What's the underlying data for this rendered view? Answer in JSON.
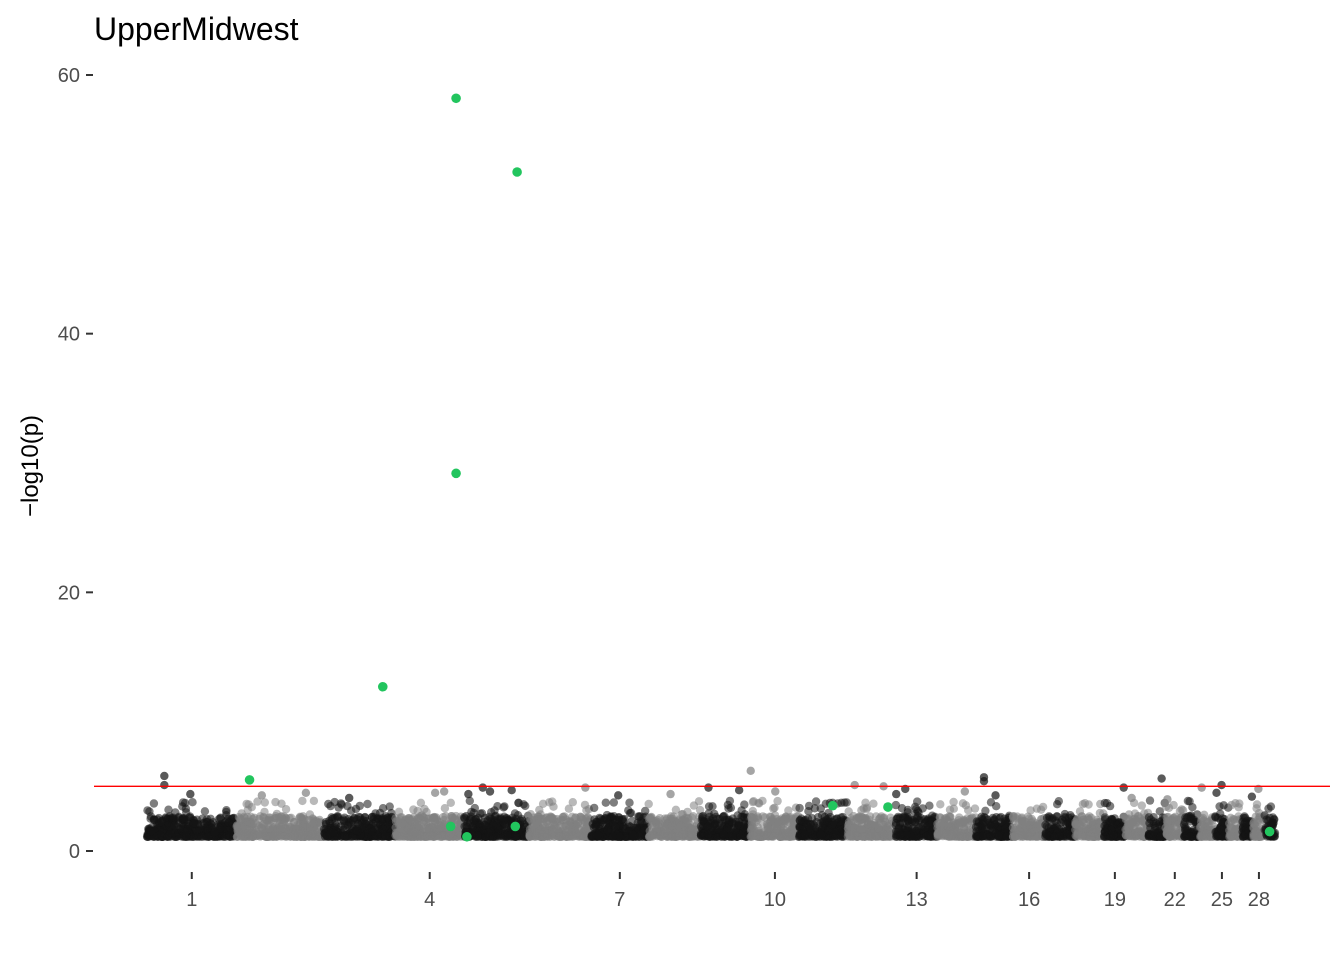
{
  "chart_data": {
    "type": "scatter",
    "title": "UpperMidwest",
    "xlabel": "",
    "ylabel": "−log10(p)",
    "ylim": [
      0,
      60
    ],
    "y_ticks": [
      0,
      20,
      40,
      60
    ],
    "chromosomes": [
      {
        "chr": 1,
        "start": 0,
        "end": 248
      },
      {
        "chr": 2,
        "start": 248,
        "end": 490
      },
      {
        "chr": 3,
        "start": 490,
        "end": 688
      },
      {
        "chr": 4,
        "start": 688,
        "end": 878
      },
      {
        "chr": 5,
        "start": 878,
        "end": 1059
      },
      {
        "chr": 6,
        "start": 1059,
        "end": 1230
      },
      {
        "chr": 7,
        "start": 1230,
        "end": 1389
      },
      {
        "chr": 8,
        "start": 1389,
        "end": 1534
      },
      {
        "chr": 9,
        "start": 1534,
        "end": 1672
      },
      {
        "chr": 10,
        "start": 1672,
        "end": 1806
      },
      {
        "chr": 11,
        "start": 1806,
        "end": 1941
      },
      {
        "chr": 12,
        "start": 1941,
        "end": 2074
      },
      {
        "chr": 13,
        "start": 2074,
        "end": 2189
      },
      {
        "chr": 14,
        "start": 2189,
        "end": 2296
      },
      {
        "chr": 15,
        "start": 2296,
        "end": 2398
      },
      {
        "chr": 16,
        "start": 2398,
        "end": 2488
      },
      {
        "chr": 17,
        "start": 2488,
        "end": 2571
      },
      {
        "chr": 18,
        "start": 2571,
        "end": 2651
      },
      {
        "chr": 19,
        "start": 2651,
        "end": 2710
      },
      {
        "chr": 20,
        "start": 2710,
        "end": 2774
      },
      {
        "chr": 21,
        "start": 2774,
        "end": 2821
      },
      {
        "chr": 22,
        "start": 2821,
        "end": 2872
      },
      {
        "chr": 23,
        "start": 2872,
        "end": 2916
      },
      {
        "chr": 24,
        "start": 2916,
        "end": 2958
      },
      {
        "chr": 25,
        "start": 2958,
        "end": 2996
      },
      {
        "chr": 26,
        "start": 2996,
        "end": 3031
      },
      {
        "chr": 27,
        "start": 3031,
        "end": 3064
      },
      {
        "chr": 28,
        "start": 3064,
        "end": 3095
      },
      {
        "chr": 29,
        "start": 3095,
        "end": 3124
      }
    ],
    "x_tick_labels": [
      "1",
      "4",
      "7",
      "10",
      "13",
      "16",
      "19",
      "22",
      "25",
      "28"
    ],
    "significance_threshold": 5,
    "colors": {
      "chromosome_dark": "#141414",
      "chromosome_light": "#7f7f7f",
      "highlight": "#22c55e",
      "threshold_line": "#ff0000",
      "axis_ticks": "#333333",
      "tick_labels": "#4d4d4d"
    },
    "background_points_note_max_y": 4,
    "highlight_points": [
      {
        "pos": 284,
        "y": 5.5
      },
      {
        "pos": 653,
        "y": 12.7
      },
      {
        "pos": 841,
        "y": 1.9
      },
      {
        "pos": 856,
        "y": 58.2
      },
      {
        "pos": 856,
        "y": 29.2
      },
      {
        "pos": 886,
        "y": 1.1
      },
      {
        "pos": 1025,
        "y": 52.5
      },
      {
        "pos": 1020,
        "y": 1.9
      },
      {
        "pos": 1899,
        "y": 3.5
      },
      {
        "pos": 2052,
        "y": 3.4
      },
      {
        "pos": 3109,
        "y": 1.5
      }
    ],
    "outlier_points": [
      {
        "pos": 48,
        "y": 5.8
      },
      {
        "pos": 48,
        "y": 5.1
      },
      {
        "pos": 120,
        "y": 4.4
      },
      {
        "pos": 318,
        "y": 4.3
      },
      {
        "pos": 440,
        "y": 4.5
      },
      {
        "pos": 560,
        "y": 4.1
      },
      {
        "pos": 798,
        "y": 4.5
      },
      {
        "pos": 823,
        "y": 4.6
      },
      {
        "pos": 890,
        "y": 4.4
      },
      {
        "pos": 930,
        "y": 4.9
      },
      {
        "pos": 950,
        "y": 4.6
      },
      {
        "pos": 1010,
        "y": 4.7
      },
      {
        "pos": 1214,
        "y": 4.9
      },
      {
        "pos": 1305,
        "y": 4.3
      },
      {
        "pos": 1450,
        "y": 4.4
      },
      {
        "pos": 1555,
        "y": 4.9
      },
      {
        "pos": 1640,
        "y": 4.7
      },
      {
        "pos": 1672,
        "y": 6.2
      },
      {
        "pos": 1740,
        "y": 4.6
      },
      {
        "pos": 1960,
        "y": 5.1
      },
      {
        "pos": 2040,
        "y": 5.0
      },
      {
        "pos": 2075,
        "y": 4.4
      },
      {
        "pos": 2100,
        "y": 4.8
      },
      {
        "pos": 2265,
        "y": 4.6
      },
      {
        "pos": 2318,
        "y": 5.7
      },
      {
        "pos": 2318,
        "y": 5.4
      },
      {
        "pos": 2350,
        "y": 4.3
      },
      {
        "pos": 2705,
        "y": 4.9
      },
      {
        "pos": 2727,
        "y": 4.1
      },
      {
        "pos": 2810,
        "y": 5.6
      },
      {
        "pos": 2826,
        "y": 4.0
      },
      {
        "pos": 2921,
        "y": 4.9
      },
      {
        "pos": 2962,
        "y": 4.5
      },
      {
        "pos": 2976,
        "y": 5.1
      },
      {
        "pos": 3060,
        "y": 4.2
      },
      {
        "pos": 3078,
        "y": 4.8
      }
    ]
  }
}
